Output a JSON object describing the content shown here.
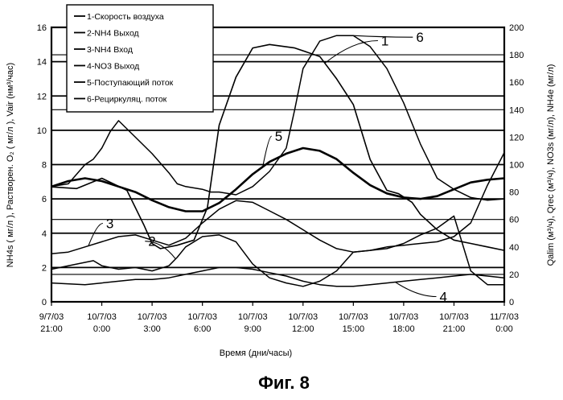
{
  "chart_data": {
    "type": "line",
    "xlabel": "Время (дни/часы)",
    "ylabel_left": "NH4s ( мг/л ),  Растворен. O₂ ( мг/л ),  Vair (нм³/час)",
    "ylabel_right": "Qalim (м³/ч),  Qrec (м³/ч),  NO3s (мг/л),  NH4e (мг/л)",
    "ylim_left": [
      0,
      16
    ],
    "ylim_right": [
      0,
      200
    ],
    "xlim_hours": [
      0,
      27
    ],
    "x_ticks": [
      {
        "line1": "9/7/03",
        "line2": "21:00"
      },
      {
        "line1": "10/7/03",
        "line2": "0:00"
      },
      {
        "line1": "10/7/03",
        "line2": "3:00"
      },
      {
        "line1": "10/7/03",
        "line2": "6:00"
      },
      {
        "line1": "10/7/03",
        "line2": "9:00"
      },
      {
        "line1": "10/7/03",
        "line2": "12:00"
      },
      {
        "line1": "10/7/03",
        "line2": "15:00"
      },
      {
        "line1": "10/7/03",
        "line2": "18:00"
      },
      {
        "line1": "10/7/03",
        "line2": "21:00"
      },
      {
        "line1": "11/7/03",
        "line2": "0:00"
      }
    ],
    "y_ticks_left": [
      "0",
      "2",
      "4",
      "6",
      "8",
      "10",
      "12",
      "14",
      "16"
    ],
    "y_ticks_right": [
      "0",
      "20",
      "40",
      "60",
      "80",
      "100",
      "120",
      "140",
      "160",
      "180",
      "200"
    ],
    "grid": "horizontal",
    "legend_position": "top-left",
    "legend": [
      "1-Скорость воздуха",
      "2-NH4 Выход",
      "3-NH4 Вход",
      "4-NO3 Выход",
      "5-Поступающий поток",
      "6-Рециркуляц. поток"
    ],
    "series": [
      {
        "name": "1-Скорость воздуха",
        "callout": "1",
        "axis": "left",
        "x": [
          0,
          1.5,
          3,
          4.5,
          5.5,
          6,
          6.5,
          7.5,
          8.5,
          9.3,
          10,
          11,
          12,
          13,
          14.5,
          16,
          17,
          18,
          19,
          20,
          20.7,
          21.5,
          22,
          23,
          24,
          25,
          26,
          27
        ],
        "y": [
          6.7,
          6.6,
          7.2,
          6.5,
          4.5,
          3.4,
          3.1,
          3.3,
          3.6,
          5.5,
          10.3,
          13.1,
          14.8,
          15.0,
          14.8,
          14.3,
          13.0,
          11.5,
          8.3,
          6.5,
          6.3,
          5.8,
          5.1,
          4.2,
          3.6,
          3.4,
          3.2,
          3.0
        ]
      },
      {
        "name": "2-NH4 Выход",
        "callout": "2",
        "axis": "left",
        "x": [
          0,
          1.5,
          2.5,
          3,
          4,
          5,
          6,
          7,
          7.5,
          8,
          9,
          10,
          11,
          12,
          13,
          14,
          15,
          16,
          17,
          18,
          19,
          20,
          21,
          22,
          23,
          24,
          25,
          26,
          27
        ],
        "y": [
          1.9,
          2.2,
          2.4,
          2.1,
          1.9,
          2.0,
          1.8,
          2.1,
          2.6,
          3.2,
          3.8,
          3.9,
          3.5,
          2.2,
          1.4,
          1.1,
          0.9,
          1.2,
          1.8,
          2.9,
          3.0,
          3.1,
          3.4,
          3.9,
          4.3,
          5.0,
          1.8,
          1.0,
          1.0
        ]
      },
      {
        "name": "3-NH4 Вход",
        "callout": "3",
        "axis": "left",
        "x": [
          0,
          1,
          2,
          3,
          4,
          5,
          6,
          7,
          8,
          9,
          10,
          11,
          12,
          13,
          14,
          15,
          16,
          17,
          18,
          19,
          20,
          21,
          22,
          23,
          24,
          25,
          26,
          27
        ],
        "y": [
          2.8,
          2.9,
          3.2,
          3.5,
          3.8,
          3.9,
          3.6,
          3.3,
          3.7,
          4.6,
          5.4,
          5.9,
          5.8,
          5.3,
          4.8,
          4.2,
          3.6,
          3.1,
          2.9,
          3.0,
          3.2,
          3.3,
          3.4,
          3.5,
          3.8,
          4.6,
          6.8,
          8.7
        ]
      },
      {
        "name": "4-NO3 Выход",
        "callout": "4",
        "axis": "left",
        "x": [
          0,
          2,
          3,
          4,
          5,
          6,
          7,
          8,
          9,
          10,
          11,
          12,
          13,
          14,
          15,
          16,
          17,
          18,
          19,
          20,
          21,
          22,
          23,
          24,
          25,
          26,
          27
        ],
        "y": [
          1.1,
          1.0,
          1.1,
          1.2,
          1.3,
          1.3,
          1.4,
          1.6,
          1.8,
          2.0,
          2.0,
          1.9,
          1.7,
          1.5,
          1.2,
          1.0,
          0.9,
          0.9,
          1.0,
          1.1,
          1.2,
          1.3,
          1.4,
          1.5,
          1.6,
          1.5,
          1.4
        ]
      },
      {
        "name": "5-Поступающий поток",
        "callout": "5",
        "axis": "right",
        "x": [
          0,
          1,
          2,
          3,
          4,
          5,
          6,
          7,
          8,
          9,
          10,
          11,
          12,
          13,
          14,
          15,
          16,
          17,
          18,
          19,
          20,
          21,
          22,
          23,
          24,
          25,
          26,
          27
        ],
        "y": [
          84,
          88,
          90,
          88,
          84,
          80,
          74,
          69,
          66,
          66,
          72,
          82,
          93,
          102,
          108,
          112,
          110,
          104,
          94,
          85,
          79,
          76,
          75,
          77,
          82,
          87,
          89,
          90
        ]
      },
      {
        "name": "6-Рециркуляц. поток",
        "callout": "6",
        "axis": "right",
        "x": [
          0,
          1,
          2,
          2.5,
          3,
          3.5,
          4,
          5,
          6,
          7,
          7.5,
          8,
          9,
          9.5,
          10,
          11,
          12,
          13,
          14,
          14.5,
          15,
          16,
          17,
          18,
          19,
          20,
          21,
          22,
          23,
          24,
          25,
          26,
          27
        ],
        "y": [
          84,
          86,
          100,
          104,
          112,
          124,
          132,
          120,
          108,
          94,
          86,
          84,
          82,
          80,
          80,
          78,
          84,
          95,
          112,
          140,
          170,
          190,
          194,
          194,
          186,
          170,
          145,
          115,
          90,
          82,
          76,
          74,
          75
        ]
      }
    ]
  },
  "figure": {
    "caption": "Фиг. 8"
  }
}
